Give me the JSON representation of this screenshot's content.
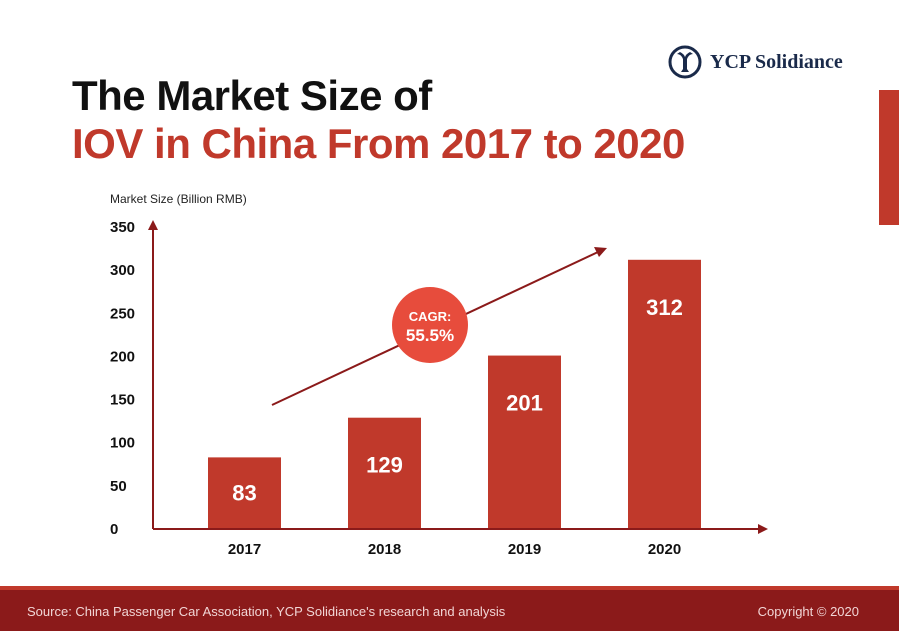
{
  "header": {
    "title_line1": "The Market Size of",
    "title_line2": "IOV in China From 2017 to 2020",
    "logo_text": "YCP Solidiance"
  },
  "chart_data": {
    "type": "bar",
    "ylabel": "Market Size (Billion RMB)",
    "categories": [
      "2017",
      "2018",
      "2019",
      "2020"
    ],
    "values": [
      83,
      129,
      201,
      312
    ],
    "ylim": [
      0,
      350
    ],
    "yticks": [
      0,
      50,
      100,
      150,
      200,
      250,
      300,
      350
    ],
    "grid": false,
    "bar_color": "#c0392b",
    "annotation": {
      "line1": "CAGR:",
      "line2": "55.5%",
      "color": "#e74c3c"
    }
  },
  "footer": {
    "source": "Source: China Passenger Car Association, YCP Solidiance's research and analysis",
    "copyright": "Copyright © 2020"
  }
}
